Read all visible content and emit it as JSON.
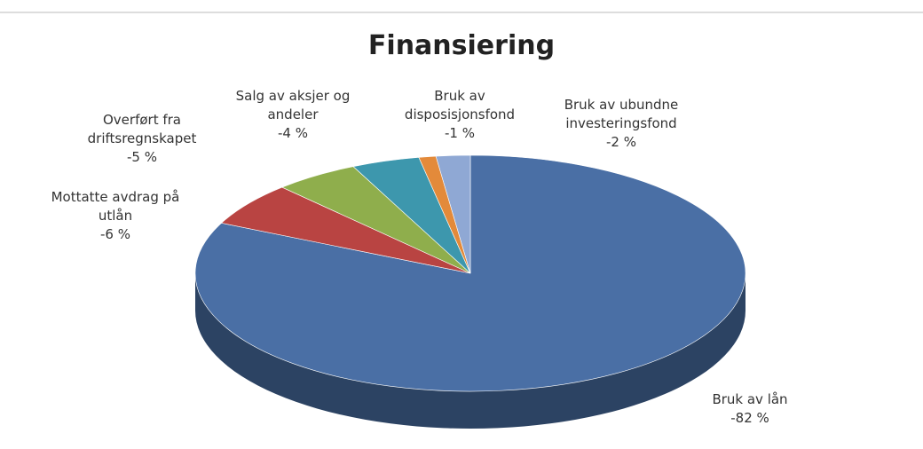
{
  "chart_data": {
    "type": "pie",
    "title": "Finansiering",
    "categories": [
      "Bruk av lån",
      "Mottatte avdrag på utlån",
      "Overført fra driftsregnskapet",
      "Salg av aksjer og andeler",
      "Bruk av disposisjonsfond",
      "Bruk av ubundne investeringsfond"
    ],
    "values": [
      -82,
      -6,
      -5,
      -4,
      -1,
      -2
    ],
    "value_labels": [
      "-82 %",
      "-6 %",
      "-5 %",
      "-4 %",
      "-1 %",
      "-2 %"
    ],
    "colors": [
      "#4a6fa5",
      "#b94442",
      "#8fae4c",
      "#3d97ad",
      "#e38a3a",
      "#8fa8d4"
    ]
  }
}
